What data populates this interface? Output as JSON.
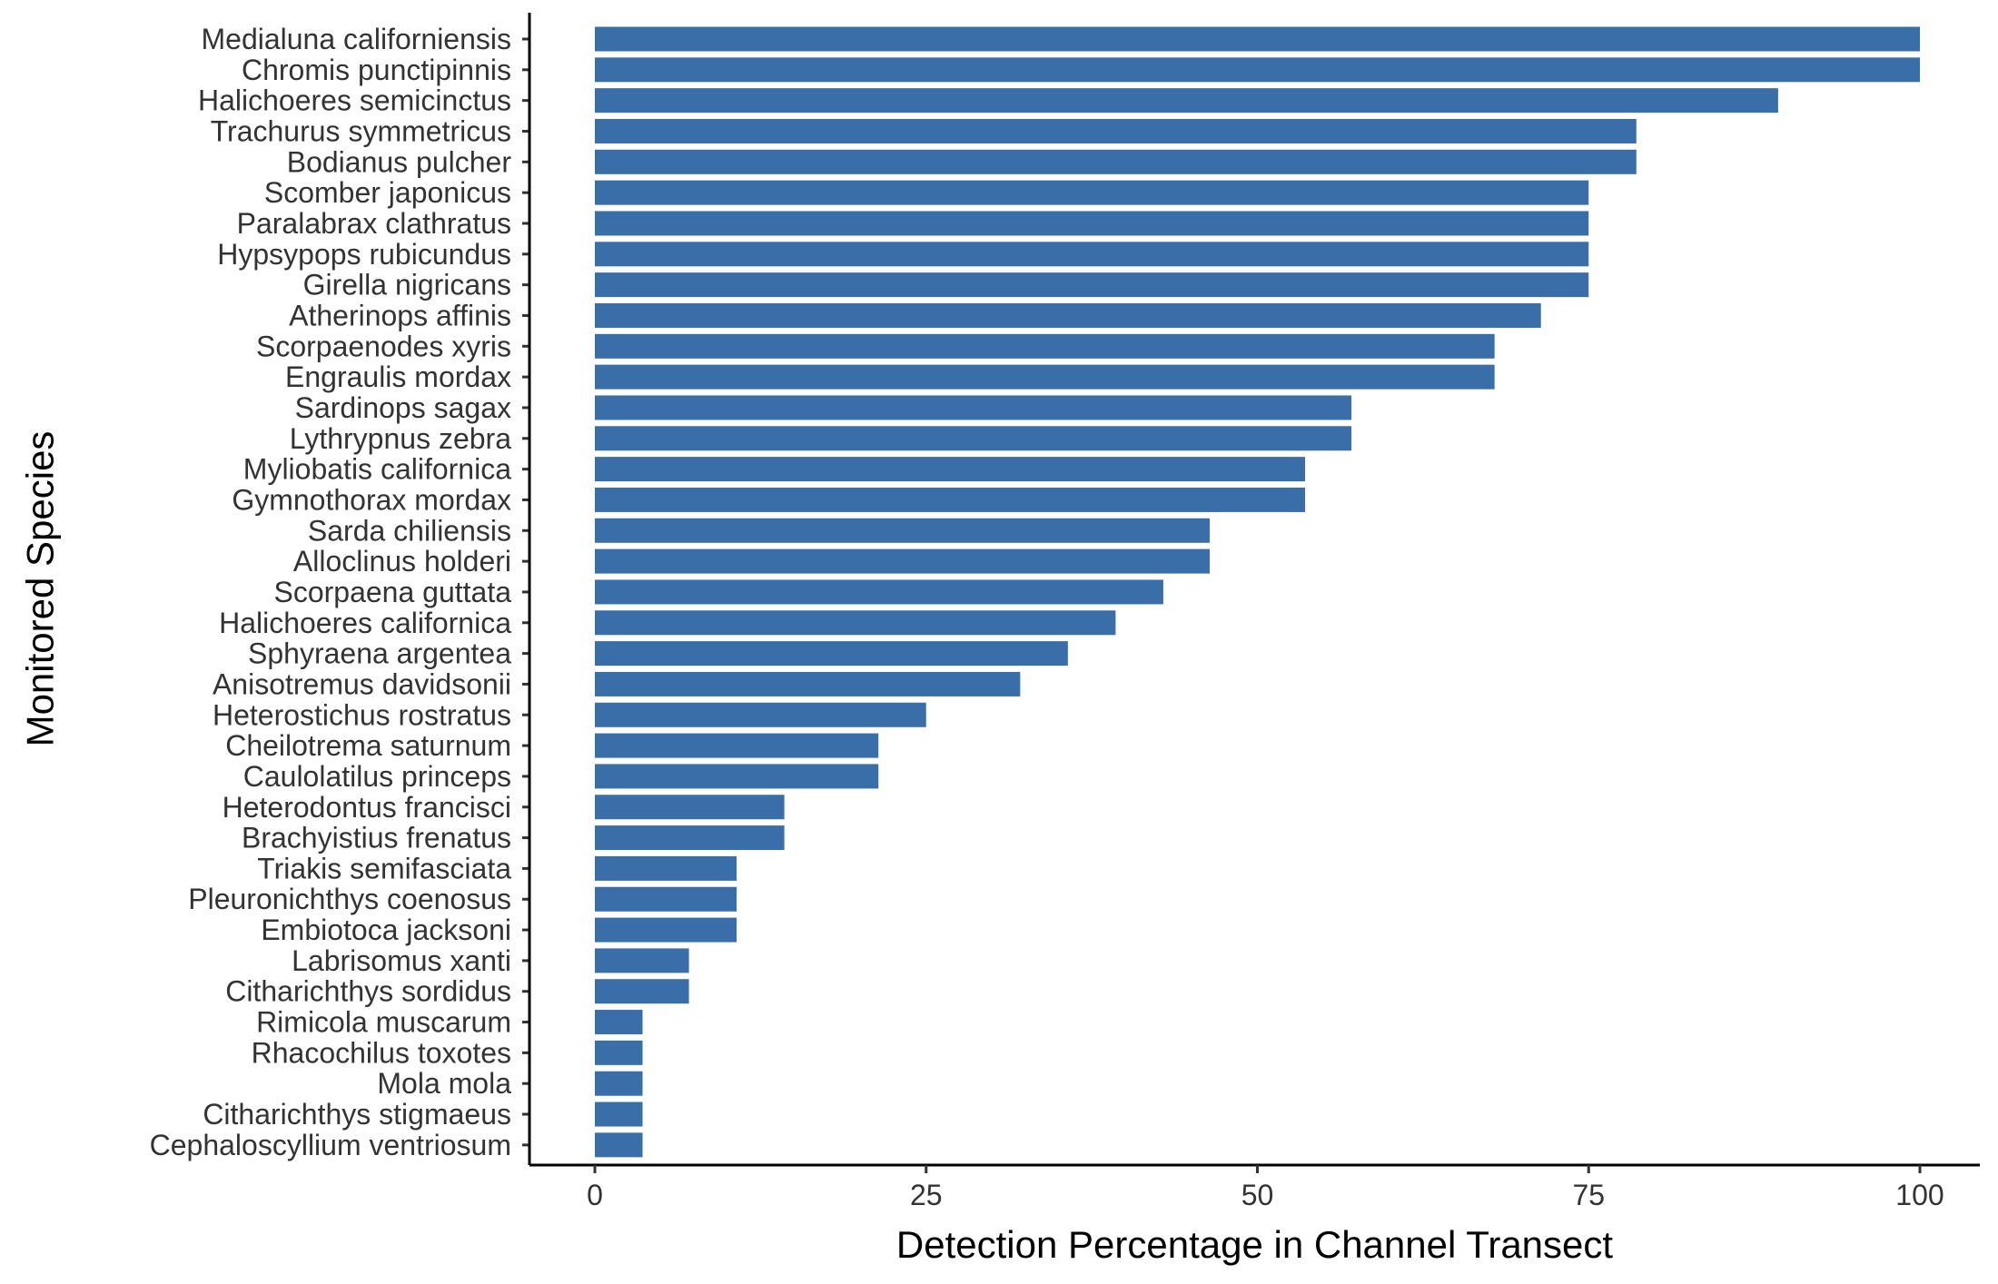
{
  "chart_data": {
    "type": "bar",
    "orientation": "horizontal",
    "title": "",
    "xlabel": "Detection Percentage in Channel Transect",
    "ylabel": "Monitored Species",
    "xlim": [
      0,
      100
    ],
    "xticks": [
      0,
      25,
      50,
      75,
      100
    ],
    "grid": false,
    "legend": "none",
    "bar_color": "#3A6EA8",
    "categories": [
      "Medialuna californiensis",
      "Chromis punctipinnis",
      "Halichoeres semicinctus",
      "Trachurus symmetricus",
      "Bodianus pulcher",
      "Scomber japonicus",
      "Paralabrax clathratus",
      "Hypsypops rubicundus",
      "Girella nigricans",
      "Atherinops affinis",
      "Scorpaenodes xyris",
      "Engraulis mordax",
      "Sardinops sagax",
      "Lythrypnus zebra",
      "Myliobatis californica",
      "Gymnothorax mordax",
      "Sarda chiliensis",
      "Alloclinus holderi",
      "Scorpaena guttata",
      "Halichoeres californica",
      "Sphyraena argentea",
      "Anisotremus davidsonii",
      "Heterostichus rostratus",
      "Cheilotrema saturnum",
      "Caulolatilus princeps",
      "Heterodontus francisci",
      "Brachyistius frenatus",
      "Triakis semifasciata",
      "Pleuronichthys coenosus",
      "Embiotoca jacksoni",
      "Labrisomus xanti",
      "Citharichthys sordidus",
      "Rimicola muscarum",
      "Rhacochilus toxotes",
      "Mola mola",
      "Citharichthys stigmaeus",
      "Cephaloscyllium ventriosum"
    ],
    "values": [
      100,
      100,
      89.3,
      78.6,
      78.6,
      75,
      75,
      75,
      75,
      71.4,
      67.9,
      67.9,
      57.1,
      57.1,
      53.6,
      53.6,
      46.4,
      46.4,
      42.9,
      39.3,
      35.7,
      32.1,
      25,
      21.4,
      21.4,
      14.3,
      14.3,
      10.7,
      10.7,
      10.7,
      7.1,
      7.1,
      3.6,
      3.6,
      3.6,
      3.6,
      3.6
    ]
  }
}
